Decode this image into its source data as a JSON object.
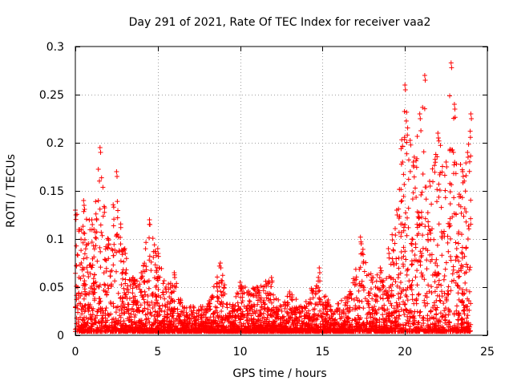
{
  "chart_data": {
    "type": "scatter",
    "title": "Day 291 of 2021, Rate Of TEC Index for receiver vaa2",
    "xlabel": "GPS time / hours",
    "ylabel": "ROTI / TECUs",
    "xlim": [
      0,
      25
    ],
    "ylim": [
      0,
      0.3
    ],
    "x_ticks": [
      "0",
      "5",
      "10",
      "15",
      "20",
      "25"
    ],
    "y_ticks": [
      "0",
      "0.05",
      "0.1",
      "0.15",
      "0.2",
      "0.25",
      "0.3"
    ],
    "grid": true,
    "marker": "+",
    "series_color": "#ff0000",
    "envelope": [
      {
        "x": 0.0,
        "max": 0.13
      },
      {
        "x": 0.5,
        "max": 0.14
      },
      {
        "x": 1.0,
        "max": 0.12
      },
      {
        "x": 1.5,
        "max": 0.195
      },
      {
        "x": 2.0,
        "max": 0.1
      },
      {
        "x": 2.5,
        "max": 0.17
      },
      {
        "x": 3.0,
        "max": 0.09
      },
      {
        "x": 3.5,
        "max": 0.06
      },
      {
        "x": 4.0,
        "max": 0.065
      },
      {
        "x": 4.5,
        "max": 0.12
      },
      {
        "x": 5.0,
        "max": 0.09
      },
      {
        "x": 5.5,
        "max": 0.05
      },
      {
        "x": 6.0,
        "max": 0.065
      },
      {
        "x": 6.5,
        "max": 0.03
      },
      {
        "x": 7.0,
        "max": 0.03
      },
      {
        "x": 8.0,
        "max": 0.03
      },
      {
        "x": 8.8,
        "max": 0.075
      },
      {
        "x": 9.5,
        "max": 0.03
      },
      {
        "x": 10.0,
        "max": 0.055
      },
      {
        "x": 11.0,
        "max": 0.05
      },
      {
        "x": 11.9,
        "max": 0.06
      },
      {
        "x": 12.5,
        "max": 0.03
      },
      {
        "x": 13.0,
        "max": 0.045
      },
      {
        "x": 14.0,
        "max": 0.035
      },
      {
        "x": 14.8,
        "max": 0.07
      },
      {
        "x": 15.5,
        "max": 0.03
      },
      {
        "x": 16.5,
        "max": 0.04
      },
      {
        "x": 17.3,
        "max": 0.102
      },
      {
        "x": 18.0,
        "max": 0.06
      },
      {
        "x": 18.5,
        "max": 0.07
      },
      {
        "x": 19.0,
        "max": 0.09
      },
      {
        "x": 19.5,
        "max": 0.13
      },
      {
        "x": 20.0,
        "max": 0.26
      },
      {
        "x": 20.5,
        "max": 0.18
      },
      {
        "x": 20.9,
        "max": 0.23
      },
      {
        "x": 21.2,
        "max": 0.27
      },
      {
        "x": 21.5,
        "max": 0.16
      },
      {
        "x": 22.0,
        "max": 0.21
      },
      {
        "x": 22.5,
        "max": 0.18
      },
      {
        "x": 22.8,
        "max": 0.283
      },
      {
        "x": 23.0,
        "max": 0.24
      },
      {
        "x": 23.5,
        "max": 0.17
      },
      {
        "x": 23.8,
        "max": 0.19
      },
      {
        "x": 24.0,
        "max": 0.23
      }
    ]
  }
}
